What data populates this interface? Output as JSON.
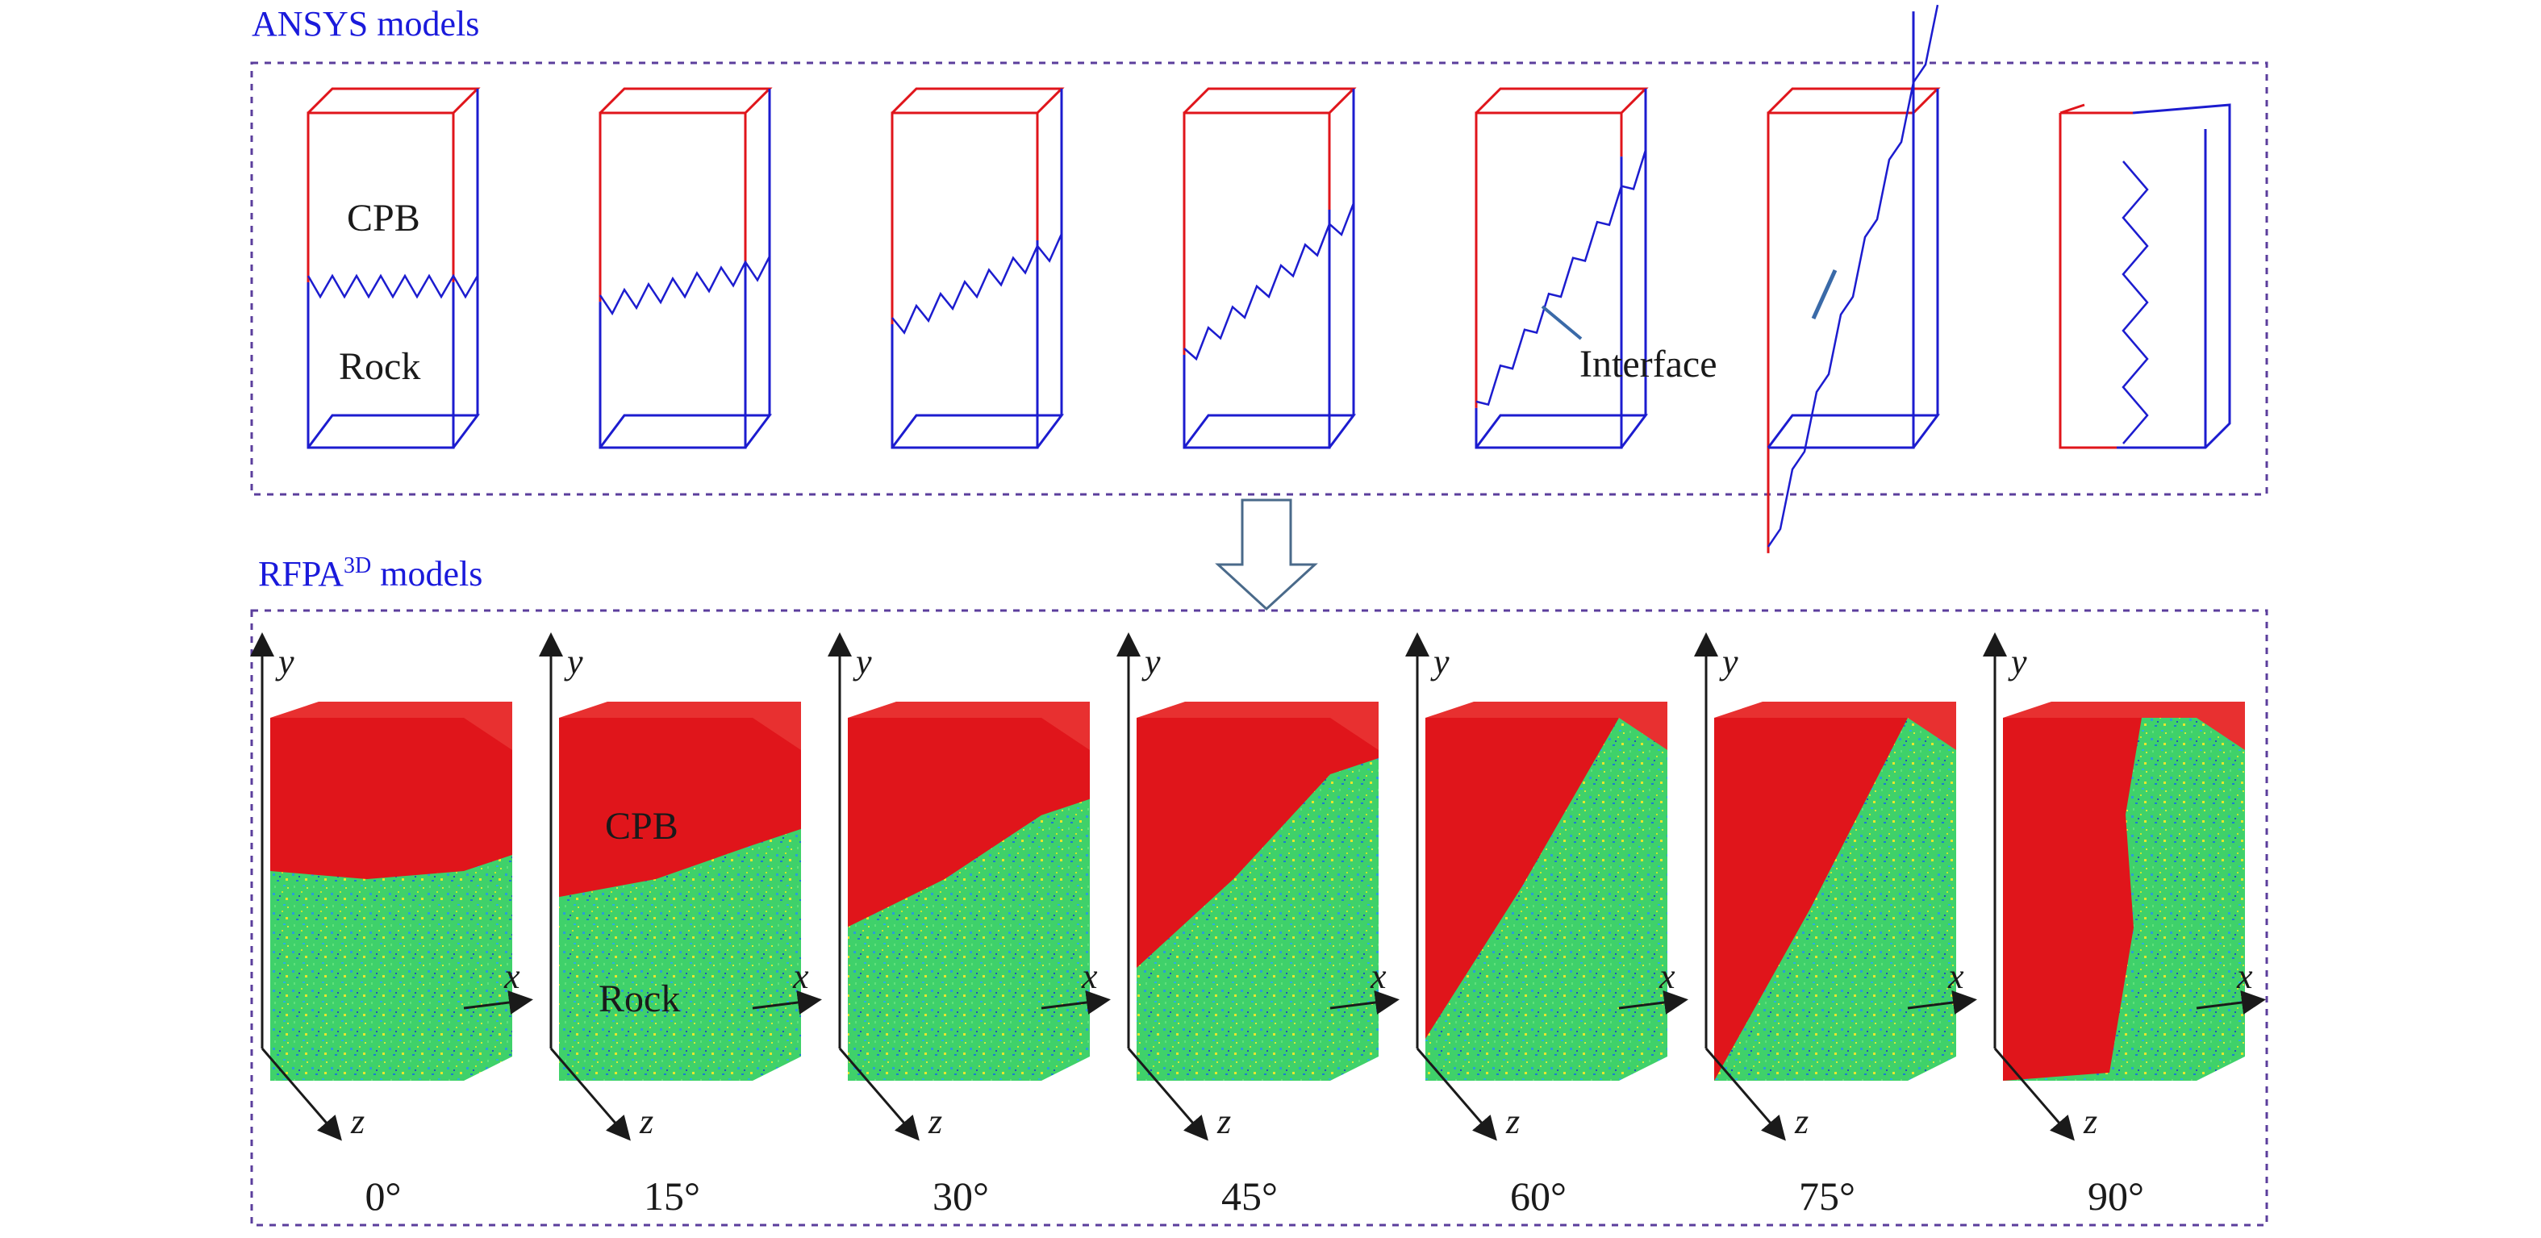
{
  "sections": {
    "ansys_title": "ANSYS models",
    "rfpa_title_main": "RFPA",
    "rfpa_title_sup": "3D",
    "rfpa_title_rest": " models"
  },
  "labels": {
    "cpb_top": "CPB",
    "rock_top": "Rock",
    "interface": "Interface",
    "cpb_bottom": "CPB",
    "rock_bottom": "Rock"
  },
  "axes": {
    "x": "x",
    "y": "y",
    "z": "z"
  },
  "angles": [
    "0°",
    "15°",
    "30°",
    "45°",
    "60°",
    "75°",
    "90°"
  ],
  "colors": {
    "title_blue": "#1a1adb",
    "cpb_red": "#e0151b",
    "rock_blue": "#1c1ccf",
    "rock_green": "#3fd16a",
    "frame_dashed": "#5b3e9c",
    "arrow_outline": "#4a6a8a"
  }
}
